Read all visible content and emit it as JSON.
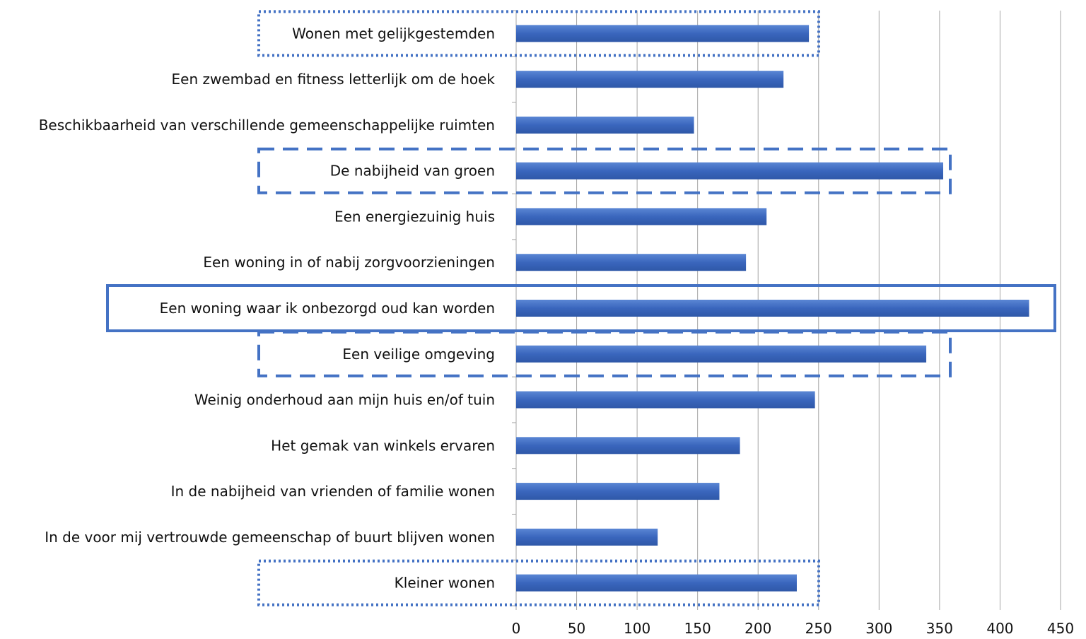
{
  "chart_data": {
    "type": "bar",
    "orientation": "horizontal",
    "categories": [
      "Wonen met gelijkgestemden",
      "Een zwembad en fitness letterlijk om de hoek",
      "Beschikbaarheid van verschillende gemeenschappelijke ruimten",
      "De nabijheid van groen",
      "Een energiezuinig huis",
      "Een woning in of nabij zorgvoorzieningen",
      "Een woning waar ik onbezorgd oud kan worden",
      "Een veilige omgeving",
      "Weinig onderhoud aan mijn huis en/of tuin",
      "Het gemak van winkels ervaren",
      "In de nabijheid van vrienden of familie wonen",
      "In de voor mij vertrouwde gemeenschap of buurt blijven wonen",
      "Kleiner wonen"
    ],
    "values": [
      242,
      221,
      147,
      353,
      207,
      190,
      424,
      339,
      247,
      185,
      168,
      117,
      232
    ],
    "xlim": [
      0,
      450
    ],
    "xticks": [
      "0",
      "50",
      "100",
      "150",
      "200",
      "250",
      "300",
      "350",
      "400",
      "450"
    ],
    "grid": "vertical",
    "bar_color": "#4472C4",
    "highlight_color": "#4472C4",
    "highlights": [
      {
        "style": "dotted",
        "categories": [
          "Wonen met gelijkgestemden"
        ]
      },
      {
        "style": "dashed",
        "categories": [
          "De nabijheid van groen"
        ]
      },
      {
        "style": "solid",
        "categories": [
          "Een woning waar ik onbezorgd oud kan worden"
        ]
      },
      {
        "style": "dashed",
        "categories": [
          "Een veilige omgeving"
        ]
      },
      {
        "style": "dotted",
        "categories": [
          "Kleiner wonen"
        ]
      }
    ]
  }
}
